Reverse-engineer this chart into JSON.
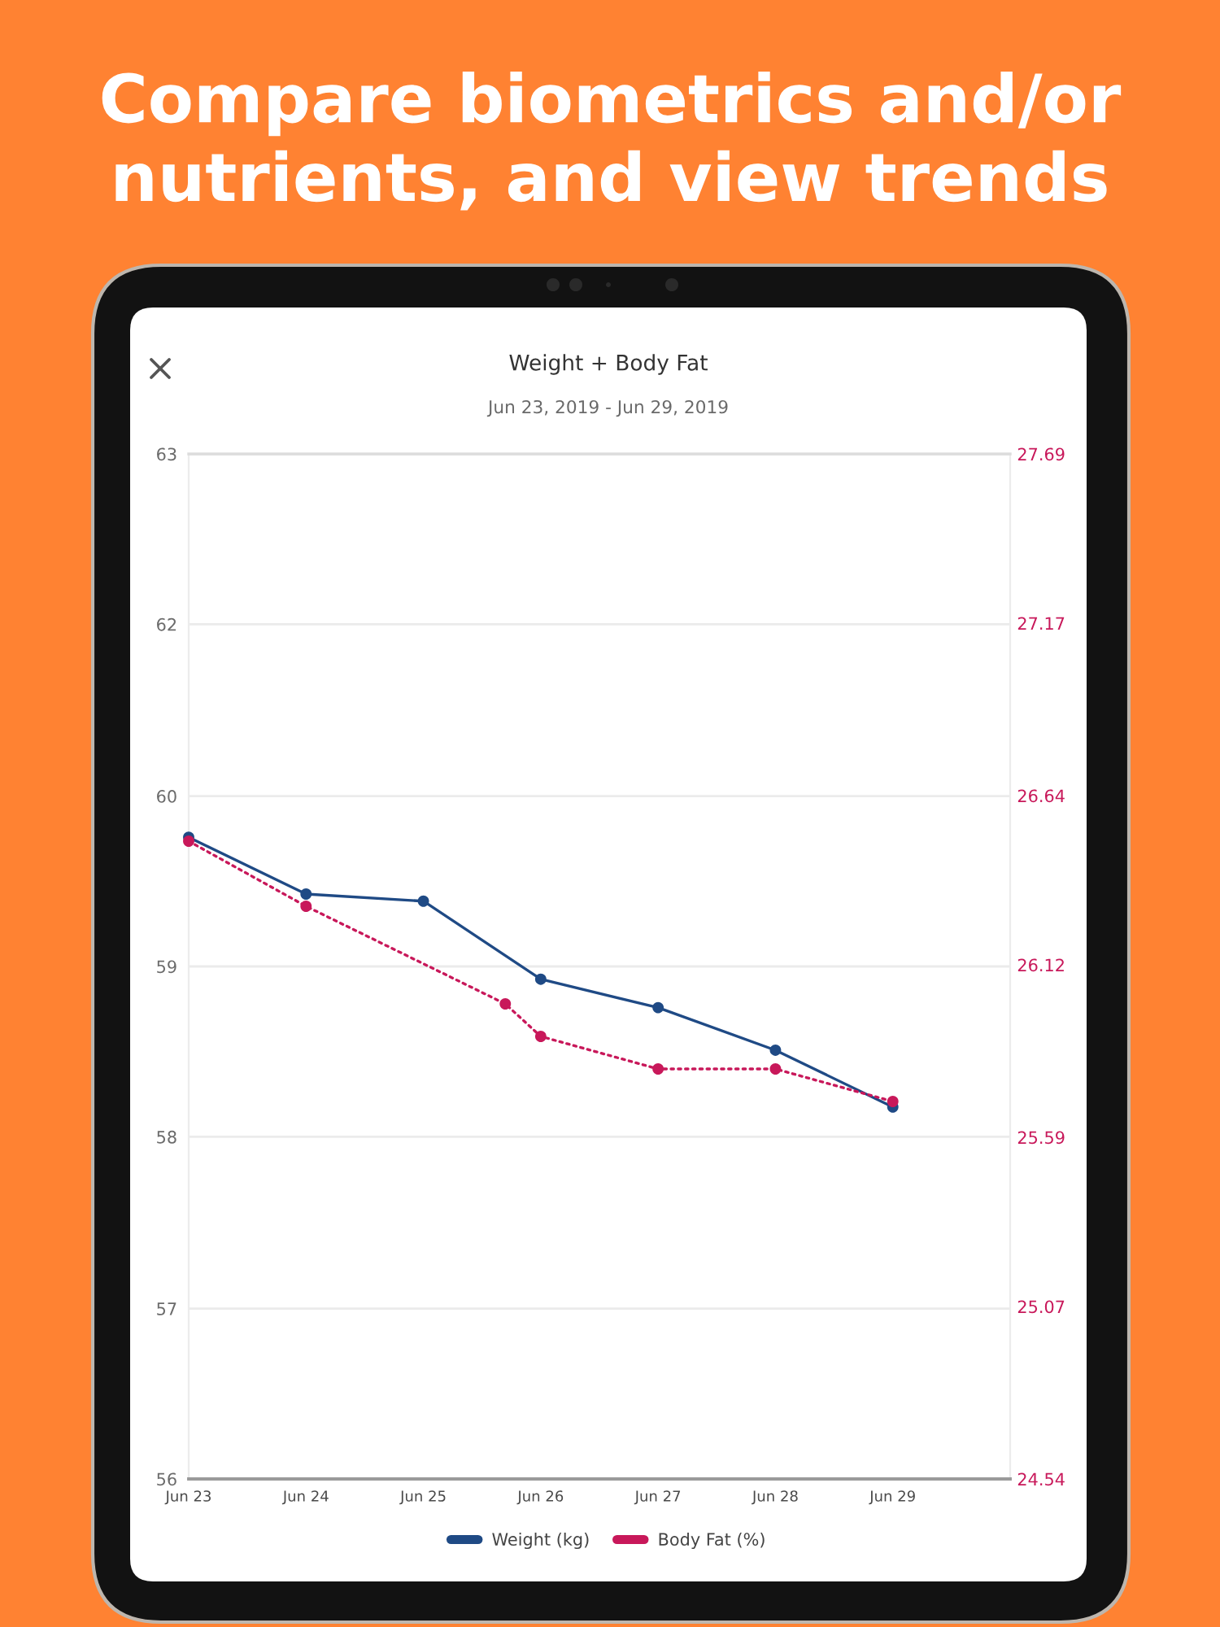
{
  "chart_data": {
    "type": "line",
    "title": "Weight + Body Fat",
    "subtitle": "Jun 23, 2019 - Jun 29, 2019",
    "annotations": [
      "Compare biometrics and/or nutrients, and view trends"
    ],
    "series": [
      {
        "name": "Weight (kg)",
        "color": "#1f4a85",
        "line_style": "solid",
        "x": [
          "2019-06-23",
          "2019-06-24",
          "2019-06-25",
          "2019-06-26",
          "2019-06-27",
          "2019-06-28",
          "2019-06-29"
        ],
        "values": [
          60.1,
          59.7,
          59.65,
          59.1,
          58.9,
          58.6,
          58.2
        ]
      },
      {
        "name": "Body Fat (%)",
        "color": "#c8185a",
        "line_style": "dotted",
        "axis": "y2",
        "x": [
          "2019-06-23",
          "2019-06-24",
          "2019-06-25T16:45",
          "2019-06-26",
          "2019-06-27",
          "2019-06-28",
          "2019-06-29"
        ],
        "values": [
          26.5,
          26.3,
          26.0,
          25.9,
          25.8,
          25.8,
          25.7
        ]
      }
    ],
    "xlim": [
      "2019-06-23",
      "2019-06-30"
    ],
    "xticks": [
      {
        "value": "2019-06-23",
        "label": "Jun 23"
      },
      {
        "value": "2019-06-24",
        "label": "Jun 24"
      },
      {
        "value": "2019-06-25",
        "label": "Jun 25"
      },
      {
        "value": "2019-06-26",
        "label": "Jun 26"
      },
      {
        "value": "2019-06-27",
        "label": "Jun 27"
      },
      {
        "value": "2019-06-28",
        "label": "Jun 28"
      },
      {
        "value": "2019-06-29",
        "label": "Jun 29"
      }
    ],
    "ylim": [
      55.58,
      62.8
    ],
    "yticks": [
      {
        "value": 55.58,
        "label": "56"
      },
      {
        "value": 56.78,
        "label": "57"
      },
      {
        "value": 57.99,
        "label": "58"
      },
      {
        "value": 59.19,
        "label": "59"
      },
      {
        "value": 60.39,
        "label": "60"
      },
      {
        "value": 61.6,
        "label": "62"
      },
      {
        "value": 62.8,
        "label": "63"
      }
    ],
    "y2lim": [
      24.54,
      27.69
    ],
    "y2ticks": [
      24.54,
      25.07,
      25.59,
      26.12,
      26.64,
      27.17,
      27.69
    ],
    "grid": "y",
    "legend": "bottom",
    "marker": "circle"
  }
}
